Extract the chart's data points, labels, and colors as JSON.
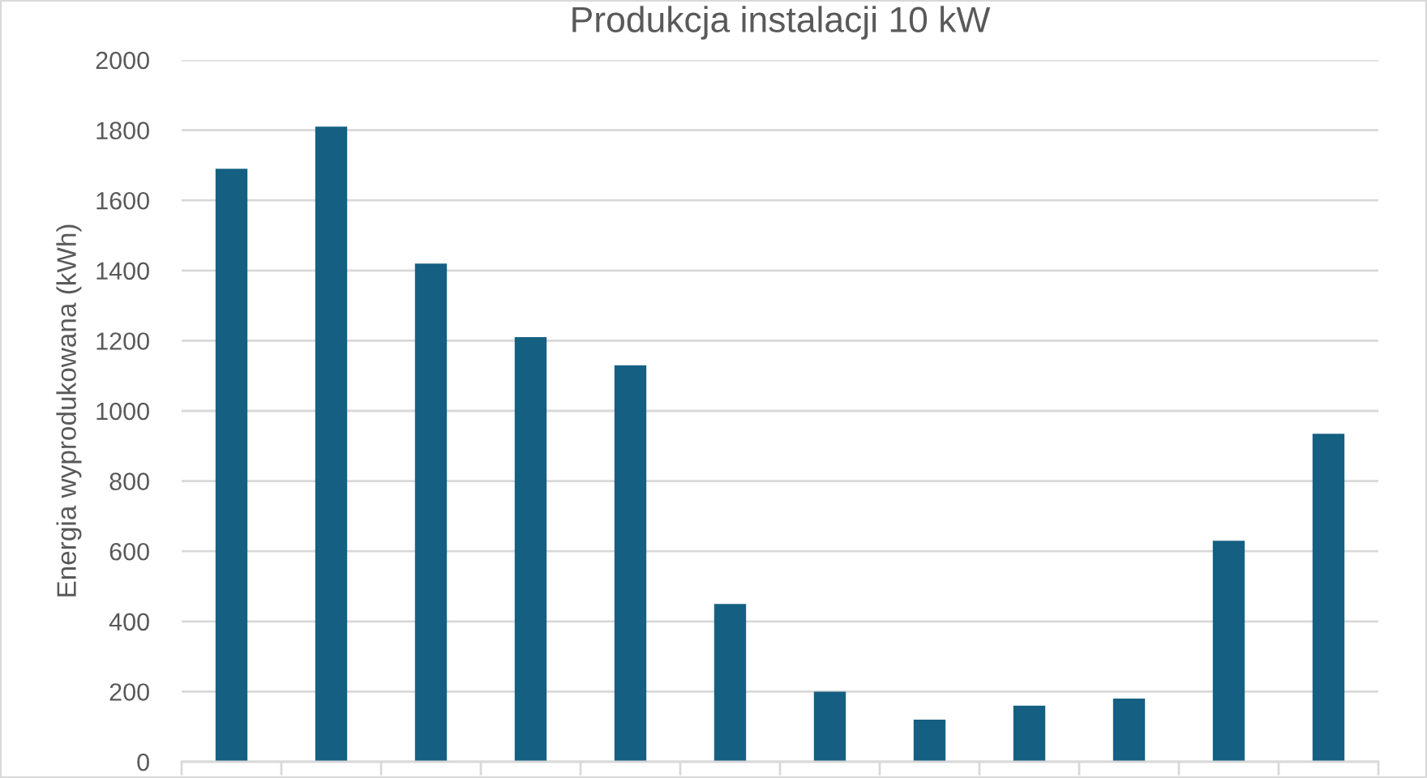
{
  "chart_data": {
    "type": "bar",
    "title": "Produkcja instalacji 10 kW",
    "ylabel": "Energia wyprodukowana (kWh)",
    "categories": [
      null,
      null,
      null,
      null,
      null,
      null,
      null,
      null,
      null,
      null,
      null,
      null
    ],
    "values": [
      1690,
      1810,
      1420,
      1210,
      1130,
      450,
      200,
      120,
      160,
      180,
      630,
      935
    ],
    "color": "#156082",
    "ylim": [
      0,
      2000
    ],
    "yticks": [
      0,
      200,
      400,
      600,
      800,
      1000,
      1200,
      1400,
      1600,
      1800,
      2000
    ],
    "grid": "y",
    "tick_labels": "y"
  }
}
